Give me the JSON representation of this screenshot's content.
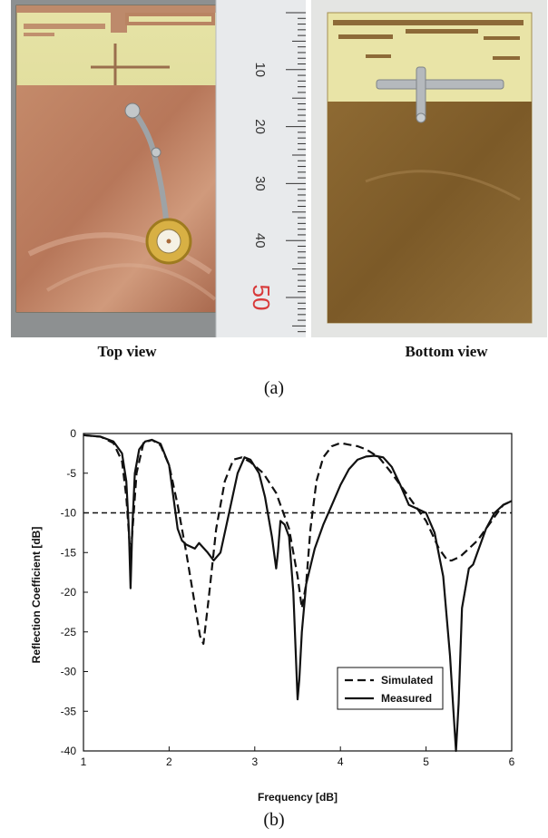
{
  "figure": {
    "label_a": "(a)",
    "label_b": "(b)",
    "caption_top": "Top view",
    "caption_bottom": "Bottom view",
    "ruler_labels": [
      "10",
      "20",
      "30",
      "40",
      "50"
    ]
  },
  "chart_data": {
    "type": "line",
    "xlabel": "Frequency [dB]",
    "ylabel": "Reflection Coefficient [dB]",
    "xlim": [
      1,
      6
    ],
    "ylim": [
      -40,
      0
    ],
    "xticks": [
      1,
      2,
      3,
      4,
      5,
      6
    ],
    "yticks": [
      0,
      -5,
      -10,
      -15,
      -20,
      -25,
      -30,
      -35,
      -40
    ],
    "grid": false,
    "legend_position": "lower-right",
    "reference_line": {
      "y": -10,
      "style": "dashed"
    },
    "series": [
      {
        "name": "Simulated",
        "style": "dashed",
        "x": [
          1.0,
          1.2,
          1.35,
          1.45,
          1.5,
          1.55,
          1.58,
          1.62,
          1.7,
          1.8,
          1.9,
          2.0,
          2.1,
          2.2,
          2.3,
          2.36,
          2.4,
          2.46,
          2.55,
          2.65,
          2.75,
          2.85,
          2.95,
          3.1,
          3.25,
          3.4,
          3.5,
          3.55,
          3.6,
          3.65,
          3.72,
          3.8,
          3.9,
          4.0,
          4.1,
          4.2,
          4.3,
          4.45,
          4.6,
          4.8,
          5.0,
          5.15,
          5.25,
          5.3,
          5.4,
          5.5,
          5.6,
          5.7,
          5.8,
          5.9,
          6.0
        ],
        "y": [
          -0.2,
          -0.4,
          -1.2,
          -3.5,
          -8.0,
          -15.5,
          -11.0,
          -5.0,
          -1.2,
          -0.8,
          -1.5,
          -4.0,
          -9.0,
          -15.0,
          -21.5,
          -25.5,
          -26.5,
          -21.0,
          -12.0,
          -6.0,
          -3.3,
          -3.0,
          -3.6,
          -5.0,
          -7.5,
          -12.0,
          -18.0,
          -22.0,
          -19.0,
          -12.0,
          -6.0,
          -3.0,
          -1.6,
          -1.2,
          -1.4,
          -1.6,
          -2.0,
          -3.0,
          -5.0,
          -8.0,
          -11.0,
          -14.5,
          -16.0,
          -16.0,
          -15.5,
          -14.5,
          -13.5,
          -12.0,
          -10.5,
          -9.0,
          -8.5
        ]
      },
      {
        "name": "Measured",
        "style": "solid",
        "x": [
          1.0,
          1.2,
          1.35,
          1.45,
          1.5,
          1.53,
          1.55,
          1.57,
          1.6,
          1.65,
          1.72,
          1.8,
          1.9,
          2.0,
          2.05,
          2.1,
          2.15,
          2.2,
          2.3,
          2.35,
          2.45,
          2.52,
          2.6,
          2.7,
          2.8,
          2.88,
          2.95,
          3.05,
          3.12,
          3.2,
          3.25,
          3.27,
          3.3,
          3.35,
          3.4,
          3.45,
          3.5,
          3.52,
          3.55,
          3.6,
          3.7,
          3.8,
          3.9,
          4.0,
          4.1,
          4.2,
          4.3,
          4.4,
          4.5,
          4.6,
          4.7,
          4.8,
          4.9,
          5.0,
          5.1,
          5.2,
          5.28,
          5.32,
          5.35,
          5.38,
          5.42,
          5.5,
          5.55,
          5.6,
          5.7,
          5.8,
          5.9,
          6.0
        ],
        "y": [
          -0.2,
          -0.4,
          -1.0,
          -2.5,
          -6.0,
          -12.0,
          -19.5,
          -12.0,
          -5.0,
          -2.0,
          -1.0,
          -0.8,
          -1.3,
          -4.0,
          -8.0,
          -12.0,
          -13.5,
          -14.0,
          -14.5,
          -13.8,
          -15.0,
          -16.0,
          -15.0,
          -10.0,
          -5.0,
          -3.0,
          -3.3,
          -5.0,
          -8.0,
          -13.0,
          -17.0,
          -15.0,
          -11.0,
          -11.5,
          -13.0,
          -20.0,
          -33.5,
          -31.0,
          -25.0,
          -19.0,
          -14.5,
          -11.5,
          -9.0,
          -6.5,
          -4.5,
          -3.3,
          -2.9,
          -2.8,
          -3.0,
          -4.2,
          -6.5,
          -9.0,
          -9.5,
          -10.0,
          -12.5,
          -18.0,
          -28.0,
          -35.0,
          -40.0,
          -34.0,
          -22.0,
          -17.0,
          -16.5,
          -15.0,
          -12.0,
          -10.0,
          -9.0,
          -8.5
        ]
      }
    ]
  }
}
